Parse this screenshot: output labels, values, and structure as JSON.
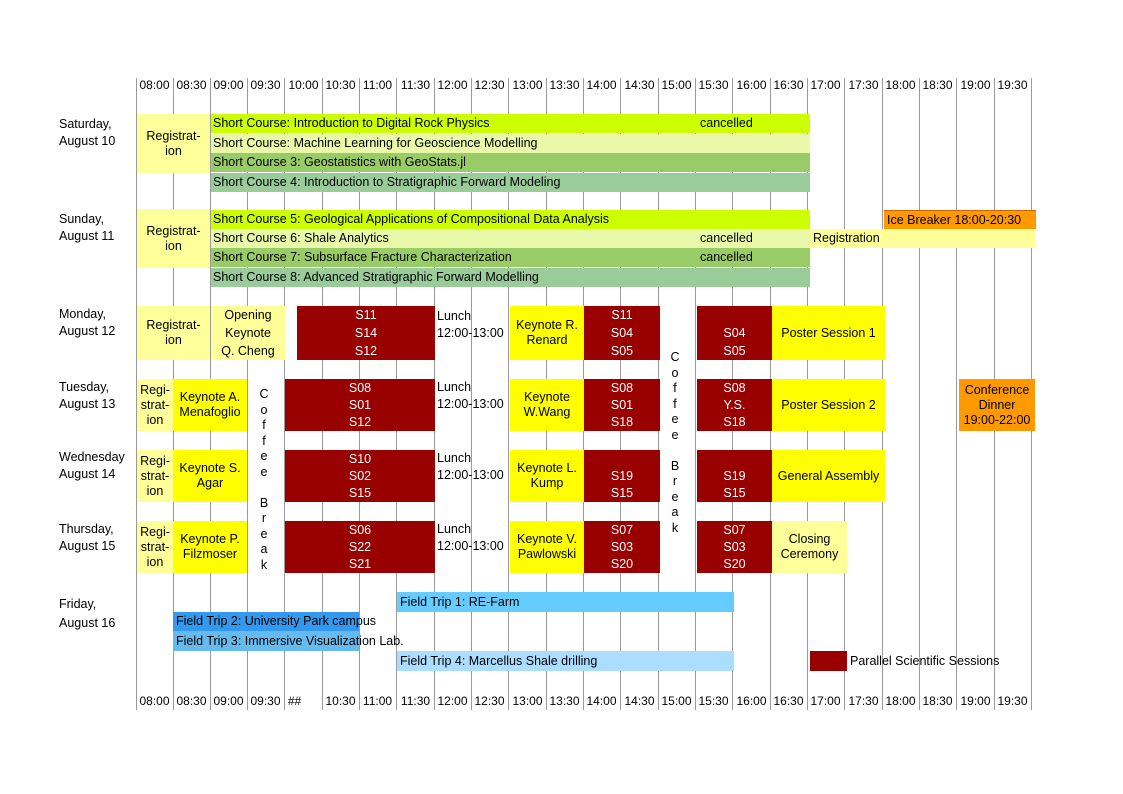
{
  "times_top": [
    "08:00",
    "08:30",
    "09:00",
    "09:30",
    "10:00",
    "10:30",
    "11:00",
    "11:30",
    "12:00",
    "12:30",
    "13:00",
    "13:30",
    "14:00",
    "14:30",
    "15:00",
    "15:30",
    "16:00",
    "16:30",
    "17:00",
    "17:30",
    "18:00",
    "18:30",
    "19:00",
    "19:30"
  ],
  "times_bottom": [
    "08:00",
    "08:30",
    "09:00",
    "09:30",
    "##",
    "10:30",
    "11:00",
    "11:30",
    "12:00",
    "12:30",
    "13:00",
    "13:30",
    "14:00",
    "14:30",
    "15:00",
    "15:30",
    "16:00",
    "16:30",
    "17:00",
    "17:30",
    "18:00",
    "18:30",
    "19:00",
    "19:30"
  ],
  "days": {
    "sat": {
      "l1": "Saturday,",
      "l2": "August 10"
    },
    "sun": {
      "l1": "Sunday,",
      "l2": "August 11"
    },
    "mon": {
      "l1": "Monday,",
      "l2": "August 12"
    },
    "tue": {
      "l1": "Tuesday,",
      "l2": "August 13"
    },
    "wed": {
      "l1": "Wednesday",
      "l2": "August 14"
    },
    "thu": {
      "l1": "Thursday,",
      "l2": "August 15"
    },
    "fri": {
      "l1": "Friday,",
      "l2": "August 16"
    }
  },
  "registration": {
    "l1": "Registrat-",
    "l2": "ion"
  },
  "registration3": {
    "l1": "Regi-",
    "l2": "strat-",
    "l3": "ion"
  },
  "registration_sun_evening": "Registration",
  "short_courses": {
    "sc1": "Short Course: Introduction to Digital Rock Physics",
    "sc2": "Short Course: Machine Learning for Geoscience Modelling",
    "sc3": "Short Course 3: Geostatistics with  GeoStats.jl",
    "sc4": "Short Course 4: Introduction to Stratigraphic Forward Modeling",
    "sc5": "Short Course 5: Geological Applications of Compositional Data Analysis",
    "sc6": "Short Course 6: Shale Analytics",
    "sc7": "Short Course 7: Subsurface Fracture Characterization",
    "sc8": "Short Course 8: Advanced Stratigraphic Forward Modelling",
    "cancelled": "cancelled"
  },
  "ice_breaker": "Ice Breaker 18:00-20:30",
  "opening": {
    "l1": "Opening",
    "l2": "Keynote",
    "l3": "Q. Cheng"
  },
  "lunch": {
    "l1": "Lunch",
    "l2": "12:00-13:00"
  },
  "coffee_break": [
    "C",
    "o",
    "f",
    "f",
    "e",
    "e",
    "",
    "B",
    "r",
    "e",
    "a",
    "k"
  ],
  "keynotes": {
    "mon_pm": {
      "l1": "Keynote  R.",
      "l2": "Renard"
    },
    "tue_am": {
      "l1": "Keynote  A.",
      "l2": "Menafoglio"
    },
    "tue_pm": {
      "l1": "Keynote",
      "l2": "W.Wang"
    },
    "wed_am": {
      "l1": "Keynote  S.",
      "l2": "Agar"
    },
    "wed_pm": {
      "l1": "Keynote  L.",
      "l2": "Kump"
    },
    "thu_am": {
      "l1": "Keynote  P.",
      "l2": "Filzmoser"
    },
    "thu_pm": {
      "l1": "Keynote  V.",
      "l2": "Pawlowski"
    }
  },
  "sessions": {
    "mon_a": [
      "S11",
      "S14",
      "S12"
    ],
    "mon_b": [
      "S11",
      "S04",
      "S05"
    ],
    "mon_c": [
      "",
      "S04",
      "S05"
    ],
    "tue_a": [
      "S08",
      "S01",
      "S12"
    ],
    "tue_b": [
      "S08",
      "S01",
      "S18"
    ],
    "tue_c": [
      "S08",
      "Y.S.",
      "S18"
    ],
    "wed_a": [
      "S10",
      "S02",
      "S15"
    ],
    "wed_b": [
      "",
      "S19",
      "S15"
    ],
    "wed_c": [
      "",
      "S19",
      "S15"
    ],
    "thu_a": [
      "S06",
      "S22",
      "S21"
    ],
    "thu_b": [
      "S07",
      "S03",
      "S20"
    ],
    "thu_c": [
      "S07",
      "S03",
      "S20"
    ]
  },
  "poster_1": "Poster Session 1",
  "poster_2": "Poster Session 2",
  "general_assembly": "General Assembly",
  "closing": {
    "l1": "Closing",
    "l2": "Ceremony"
  },
  "dinner": {
    "l1": "Conference",
    "l2": "Dinner",
    "l3": "19:00-22:00"
  },
  "field_trips": {
    "ft1": "Field Trip 1: RE-Farm",
    "ft2": "Field Trip 2: University Park campus",
    "ft3": "Field Trip 3: Immersive Visualization Lab.",
    "ft4": "Field Trip 4: Marcellus Shale drilling"
  },
  "legend": "Parallel Scientific Sessions",
  "colors": {
    "dark_red": "#990000",
    "yellow": "#ffff00",
    "pale_yellow": "#ffff99",
    "sc1": "#ccff00",
    "sc2": "#eaf8aa",
    "sc3": "#99cc66",
    "sc4": "#99cc99",
    "ice_breaker": "#ff9900",
    "dinner": "#ff9900",
    "ft1": "#66ccff",
    "ft2": "#3399ee",
    "ft3": "#66bbee",
    "ft4": "#aaddff"
  }
}
